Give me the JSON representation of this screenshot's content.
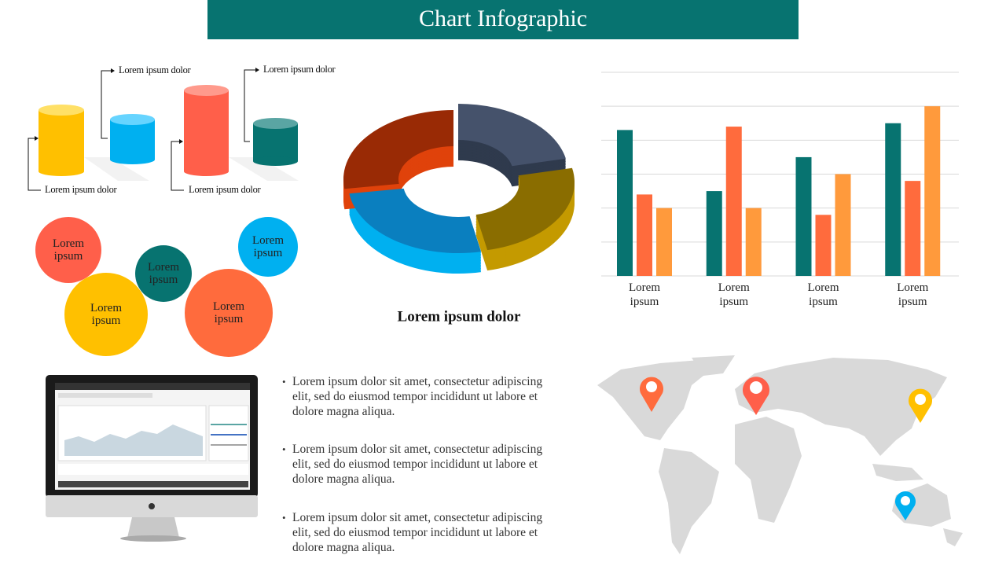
{
  "title": "Chart Infographic",
  "cylinder_labels": [
    "Lorem ipsum dolor",
    "Lorem ipsum dolor",
    "Lorem ipsum dolor",
    "Lorem ipsum dolor"
  ],
  "bubbles": [
    "Lorem ipsum",
    "Lorem ipsum",
    "Lorem ipsum",
    "Lorem ipsum",
    "Lorem ipsum"
  ],
  "donut_caption": "Lorem ipsum dolor",
  "chart_data": {
    "type": "bar",
    "categories": [
      "Lorem ipsum",
      "Lorem ipsum",
      "Lorem ipsum",
      "Lorem ipsum"
    ],
    "series": [
      {
        "color": "#077370",
        "values": [
          4.3,
          2.5,
          3.5,
          4.5
        ]
      },
      {
        "color": "#ff6b3d",
        "values": [
          2.4,
          4.4,
          1.8,
          2.8
        ]
      },
      {
        "color": "#ff9a3c",
        "values": [
          2.0,
          2.0,
          3.0,
          5.0
        ]
      }
    ],
    "ylim": [
      0,
      6
    ],
    "yticks": [
      0,
      1,
      2,
      3,
      4,
      5,
      6
    ],
    "grid": true
  },
  "bullets": [
    "Lorem ipsum dolor sit amet, consectetur adipiscing elit, sed do eiusmod tempor incididunt ut labore et dolore magna aliqua.",
    "Lorem ipsum dolor sit amet, consectetur adipiscing elit, sed do eiusmod tempor incididunt ut labore et dolore magna aliqua.",
    "Lorem ipsum dolor sit amet, consectetur adipiscing elit, sed do eiusmod tempor incididunt ut labore et dolore magna aliqua."
  ]
}
